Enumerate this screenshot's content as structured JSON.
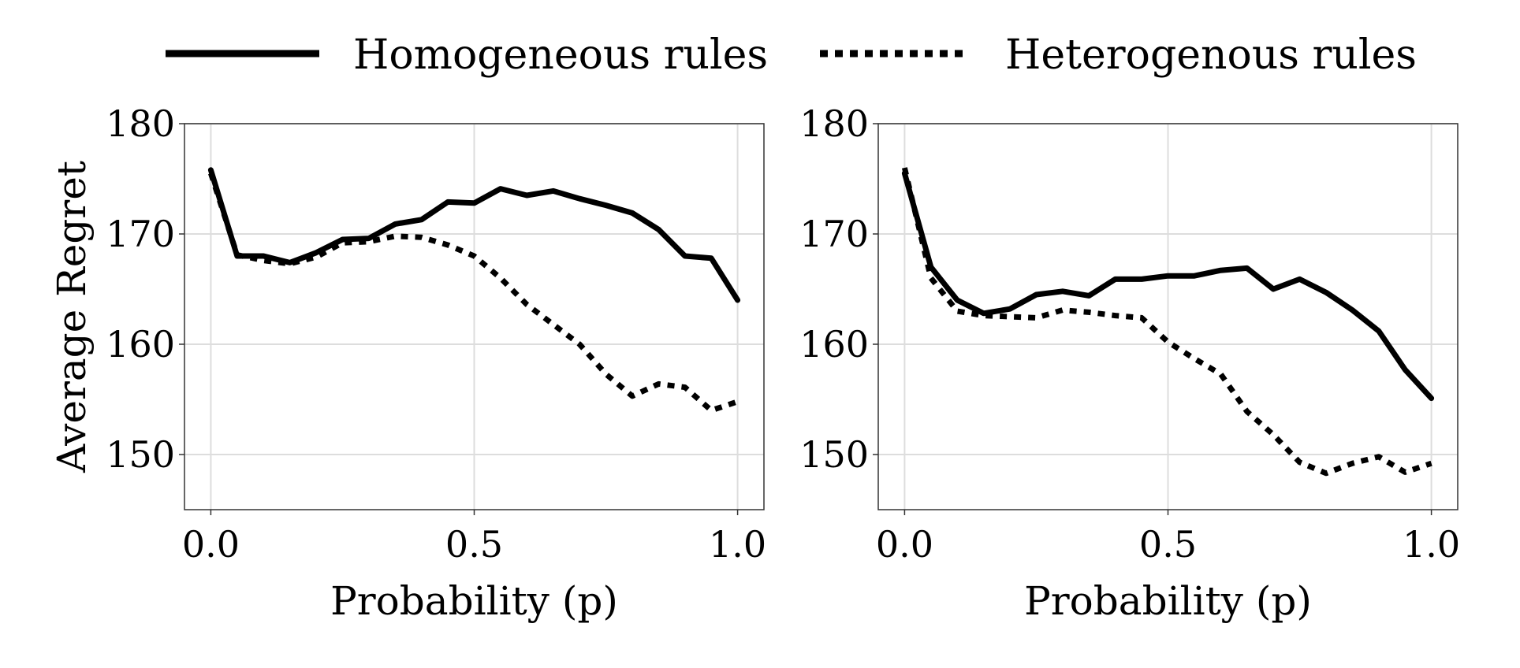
{
  "legend": {
    "placement": "top-center",
    "entries": [
      {
        "label": "Homogeneous rules",
        "style": "solid"
      },
      {
        "label": "Heterogenous rules",
        "style": "dotted"
      }
    ]
  },
  "chart_data": [
    {
      "type": "line",
      "title": "",
      "xlabel": "Probability (p)",
      "ylabel": "Average Regret",
      "xlim": [
        -0.05,
        1.05
      ],
      "ylim": [
        145,
        180
      ],
      "xticks": [
        0.0,
        0.5,
        1.0
      ],
      "xtick_labels": [
        "0.0",
        "0.5",
        "1.0"
      ],
      "yticks": [
        150,
        160,
        170,
        180
      ],
      "ytick_labels": [
        "150",
        "160",
        "170",
        "180"
      ],
      "grid": true,
      "x": [
        0.0,
        0.05,
        0.1,
        0.15,
        0.2,
        0.25,
        0.3,
        0.35,
        0.4,
        0.45,
        0.5,
        0.55,
        0.6,
        0.65,
        0.7,
        0.75,
        0.8,
        0.85,
        0.9,
        0.95,
        1.0
      ],
      "series": [
        {
          "name": "Homogeneous rules",
          "style": "solid",
          "values": [
            175.8,
            168.0,
            168.0,
            167.4,
            168.3,
            169.5,
            169.6,
            170.9,
            171.3,
            172.9,
            172.8,
            174.1,
            173.5,
            173.9,
            173.2,
            172.6,
            171.9,
            170.4,
            168.0,
            167.8,
            164.0
          ]
        },
        {
          "name": "Heterogenous rules",
          "style": "dotted",
          "values": [
            175.5,
            168.1,
            167.6,
            167.3,
            167.9,
            169.2,
            169.3,
            169.8,
            169.7,
            169.0,
            168.0,
            166.0,
            163.6,
            161.8,
            160.0,
            157.3,
            155.3,
            156.4,
            156.1,
            154.0,
            154.8
          ]
        }
      ]
    },
    {
      "type": "line",
      "title": "",
      "xlabel": "Probability (p)",
      "ylabel": "",
      "xlim": [
        -0.05,
        1.05
      ],
      "ylim": [
        145,
        180
      ],
      "xticks": [
        0.0,
        0.5,
        1.0
      ],
      "xtick_labels": [
        "0.0",
        "0.5",
        "1.0"
      ],
      "yticks": [
        150,
        160,
        170,
        180
      ],
      "ytick_labels": [
        "150",
        "160",
        "170",
        "180"
      ],
      "grid": true,
      "x": [
        0.0,
        0.05,
        0.1,
        0.15,
        0.2,
        0.25,
        0.3,
        0.35,
        0.4,
        0.45,
        0.5,
        0.55,
        0.6,
        0.65,
        0.7,
        0.75,
        0.8,
        0.85,
        0.9,
        0.95,
        1.0
      ],
      "series": [
        {
          "name": "Homogeneous rules",
          "style": "solid",
          "values": [
            175.5,
            167.0,
            164.0,
            162.8,
            163.2,
            164.5,
            164.8,
            164.4,
            165.9,
            165.9,
            166.2,
            166.2,
            166.7,
            166.9,
            165.0,
            165.9,
            164.7,
            163.1,
            161.2,
            157.7,
            155.1
          ]
        },
        {
          "name": "Heterogenous rules",
          "style": "dotted",
          "values": [
            176.0,
            166.0,
            163.0,
            162.6,
            162.5,
            162.4,
            163.1,
            162.9,
            162.6,
            162.4,
            160.2,
            158.7,
            157.3,
            153.9,
            151.8,
            149.3,
            148.3,
            149.2,
            149.8,
            148.4,
            149.2
          ]
        }
      ]
    }
  ]
}
